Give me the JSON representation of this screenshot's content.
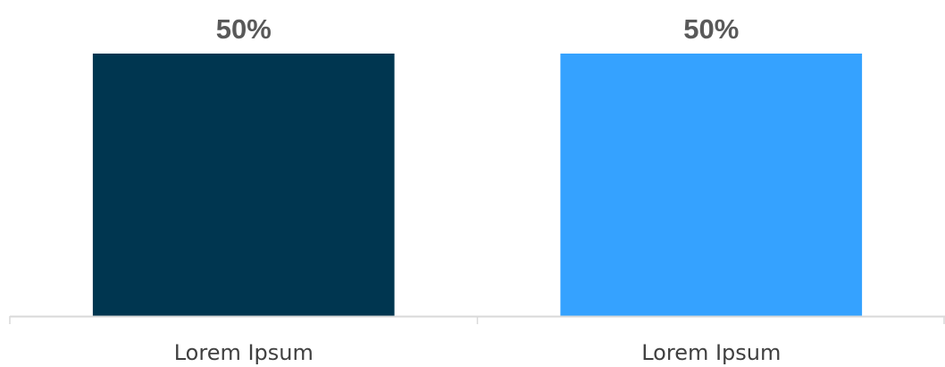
{
  "chart_data": {
    "type": "bar",
    "categories": [
      "Lorem Ipsum",
      "Lorem Ipsum"
    ],
    "values": [
      50,
      50
    ],
    "data_labels": [
      "50%",
      "50%"
    ],
    "colors": [
      "#003650",
      "#35a2ff"
    ],
    "title": "",
    "xlabel": "",
    "ylabel": "",
    "ylim": [
      0,
      50
    ],
    "grid": false,
    "legend": "none"
  }
}
